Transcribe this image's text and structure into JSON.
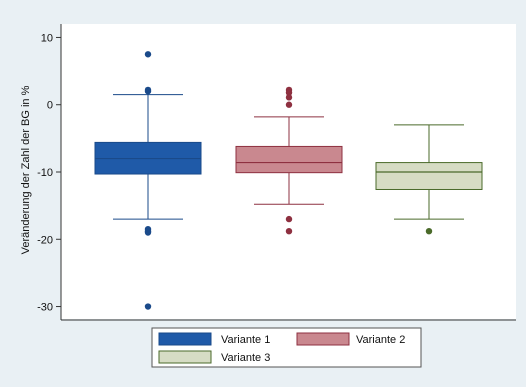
{
  "chart_data": {
    "type": "boxplot",
    "ylabel": "Veränderung der Zahl der BG in %",
    "ylim": [
      -32,
      12
    ],
    "yticks": [
      10,
      0,
      -10,
      -20,
      -30
    ],
    "grid": false,
    "legend_position": "bottom",
    "series": [
      {
        "name": "Variante 1",
        "color": "#1f5aa8",
        "stroke": "#1a4a8a",
        "q1": -10.3,
        "median": -8.0,
        "q3": -5.6,
        "whisker_low": -17.0,
        "whisker_high": 1.5,
        "outliers": [
          7.5,
          2.2,
          2.0,
          -18.5,
          -18.8,
          -19.0,
          -30.0
        ]
      },
      {
        "name": "Variante 2",
        "color": "#c9888f",
        "stroke": "#8e3040",
        "q1": -10.1,
        "median": -8.6,
        "q3": -6.2,
        "whisker_low": -14.8,
        "whisker_high": -1.8,
        "outliers": [
          2.2,
          1.8,
          1.1,
          0.0,
          -17.0,
          -18.8
        ]
      },
      {
        "name": "Variante 3",
        "color": "#d6dcc4",
        "stroke": "#4a6a2a",
        "q1": -12.6,
        "median": -10.0,
        "q3": -8.6,
        "whisker_low": -17.0,
        "whisker_high": -3.0,
        "outliers": [
          -18.8
        ]
      }
    ]
  }
}
